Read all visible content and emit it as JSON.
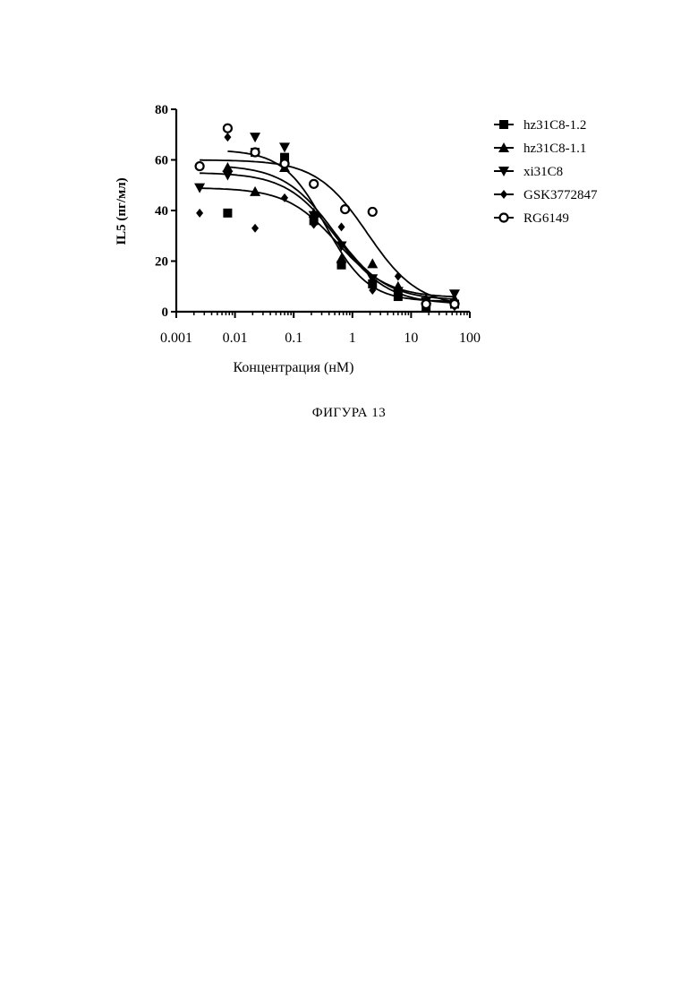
{
  "caption": "ФИГУРА 13",
  "chart_data": {
    "type": "scatter",
    "xscale": "log",
    "xlabel": "Концентрация (нМ)",
    "ylabel": "IL5 (пг/мл)",
    "xlim": [
      0.001,
      100
    ],
    "ylim": [
      0,
      80
    ],
    "xticks": [
      "0.001",
      "0.01",
      "0.1",
      "1",
      "10",
      "100"
    ],
    "yticks": [
      "0",
      "20",
      "40",
      "60",
      "80"
    ],
    "legend_position": "right",
    "series": [
      {
        "name": "hz31C8-1.2",
        "marker": "square",
        "points": [
          [
            0.0075,
            39
          ],
          [
            0.022,
            63
          ],
          [
            0.07,
            61
          ],
          [
            0.22,
            36
          ],
          [
            0.65,
            18.5
          ],
          [
            2.2,
            11
          ],
          [
            6,
            6
          ],
          [
            18,
            2
          ],
          [
            55,
            3
          ]
        ],
        "fit": {
          "top": 64,
          "bottom": 4,
          "ic50": 0.35,
          "hill": 1.2
        }
      },
      {
        "name": "hz31C8-1.1",
        "marker": "triangle-up",
        "points": [
          [
            0.0075,
            57
          ],
          [
            0.022,
            47.5
          ],
          [
            0.07,
            57
          ],
          [
            0.22,
            39
          ],
          [
            0.65,
            21
          ],
          [
            2.2,
            19
          ],
          [
            6,
            10
          ],
          [
            18,
            5
          ],
          [
            55,
            5
          ]
        ],
        "fit": {
          "top": 58,
          "bottom": 4.5,
          "ic50": 0.5,
          "hill": 1.0
        }
      },
      {
        "name": "xi31C8",
        "marker": "triangle-down",
        "points": [
          [
            0.0025,
            49
          ],
          [
            0.0075,
            54
          ],
          [
            0.022,
            69
          ],
          [
            0.07,
            65
          ],
          [
            0.22,
            38
          ],
          [
            0.65,
            26
          ],
          [
            2.2,
            13
          ],
          [
            6,
            8
          ],
          [
            18,
            4
          ],
          [
            55,
            7
          ]
        ],
        "fit": {
          "top": 49,
          "bottom": 5.5,
          "ic50": 0.55,
          "hill": 1.0
        }
      },
      {
        "name": "GSK3772847",
        "marker": "diamond",
        "points": [
          [
            0.0025,
            39
          ],
          [
            0.0075,
            69
          ],
          [
            0.022,
            33
          ],
          [
            0.07,
            45
          ],
          [
            0.22,
            34.5
          ],
          [
            0.65,
            33.5
          ],
          [
            2.2,
            8.5
          ],
          [
            6,
            14
          ],
          [
            18,
            2
          ],
          [
            55,
            2
          ]
        ],
        "fit": {
          "top": 55,
          "bottom": 3,
          "ic50": 0.55,
          "hill": 1.0
        }
      },
      {
        "name": "RG6149",
        "marker": "open-circle",
        "points": [
          [
            0.0025,
            57.5
          ],
          [
            0.0075,
            72.5
          ],
          [
            0.022,
            63
          ],
          [
            0.07,
            58.5
          ],
          [
            0.22,
            50.5
          ],
          [
            0.75,
            40.5
          ],
          [
            2.2,
            39.5
          ],
          [
            18,
            3
          ],
          [
            55,
            3
          ]
        ],
        "fit": {
          "top": 60,
          "bottom": 2,
          "ic50": 1.8,
          "hill": 1.0
        }
      }
    ]
  }
}
